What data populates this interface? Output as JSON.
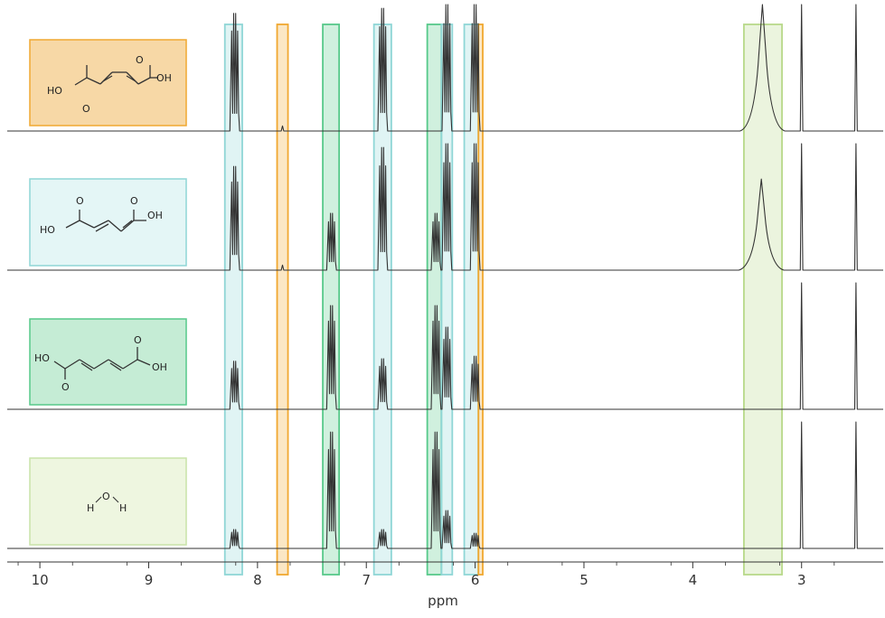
{
  "chart_data": {
    "type": "line",
    "x_axis": {
      "label": "ppm",
      "reversed": true,
      "range": [
        10.3,
        2.25
      ],
      "ticks": [
        10,
        9,
        8,
        7,
        6,
        5,
        4,
        3
      ]
    },
    "y_axis": {
      "shown": false
    },
    "grid": false,
    "legend": "none",
    "highlight_bands": [
      {
        "from": 8.3,
        "to": 8.14,
        "color": "#8fd6d6"
      },
      {
        "from": 7.82,
        "to": 7.72,
        "color": "#f0a830"
      },
      {
        "from": 7.4,
        "to": 7.25,
        "color": "#57c98a"
      },
      {
        "from": 6.93,
        "to": 6.77,
        "color": "#8fd6d6"
      },
      {
        "from": 6.44,
        "to": 6.31,
        "color": "#57c98a"
      },
      {
        "from": 6.31,
        "to": 6.21,
        "color": "#8fd6d6"
      },
      {
        "from": 6.1,
        "to": 5.97,
        "color": "#8fd6d6"
      },
      {
        "from": 5.97,
        "to": 5.93,
        "color": "#f0a830"
      },
      {
        "from": 3.53,
        "to": 3.18,
        "color": "#b8d98a"
      }
    ],
    "spectra": [
      {
        "label_box_color": "#f0a830",
        "label_box_fill": "#f7d8a6",
        "peaks": [
          {
            "ppm": 8.21,
            "height": 0.93,
            "multiplet": 4
          },
          {
            "ppm": 7.77,
            "height": 0.04,
            "multiplet": 1
          },
          {
            "ppm": 6.85,
            "height": 0.97,
            "multiplet": 4
          },
          {
            "ppm": 6.26,
            "height": 1.0,
            "multiplet": 4
          },
          {
            "ppm": 6.0,
            "height": 1.0,
            "multiplet": 4
          },
          {
            "ppm": 3.36,
            "height": 1.0,
            "multiplet": 1
          },
          {
            "ppm": 3.0,
            "height": 1.0,
            "multiplet": 1
          },
          {
            "ppm": 2.5,
            "height": 1.0,
            "multiplet": 1
          }
        ]
      },
      {
        "label_box_color": "#8fd6d6",
        "label_box_fill": "#e4f6f6",
        "peaks": [
          {
            "ppm": 8.21,
            "height": 0.82,
            "multiplet": 4
          },
          {
            "ppm": 7.77,
            "height": 0.04,
            "multiplet": 1
          },
          {
            "ppm": 7.32,
            "height": 0.45,
            "multiplet": 4
          },
          {
            "ppm": 6.85,
            "height": 0.97,
            "multiplet": 4
          },
          {
            "ppm": 6.36,
            "height": 0.45,
            "multiplet": 4
          },
          {
            "ppm": 6.26,
            "height": 1.0,
            "multiplet": 4
          },
          {
            "ppm": 6.0,
            "height": 1.0,
            "multiplet": 4
          },
          {
            "ppm": 3.37,
            "height": 0.72,
            "multiplet": 1
          },
          {
            "ppm": 3.0,
            "height": 1.0,
            "multiplet": 1
          },
          {
            "ppm": 2.5,
            "height": 1.0,
            "multiplet": 1
          }
        ]
      },
      {
        "label_box_color": "#57c98a",
        "label_box_fill": "#c5ecd5",
        "peaks": [
          {
            "ppm": 8.21,
            "height": 0.38,
            "multiplet": 4
          },
          {
            "ppm": 7.32,
            "height": 0.82,
            "multiplet": 4
          },
          {
            "ppm": 6.85,
            "height": 0.4,
            "multiplet": 4
          },
          {
            "ppm": 6.36,
            "height": 0.82,
            "multiplet": 4
          },
          {
            "ppm": 6.26,
            "height": 0.65,
            "multiplet": 4
          },
          {
            "ppm": 6.0,
            "height": 0.42,
            "multiplet": 4
          },
          {
            "ppm": 3.0,
            "height": 1.0,
            "multiplet": 1
          },
          {
            "ppm": 2.5,
            "height": 1.0,
            "multiplet": 1
          }
        ]
      },
      {
        "label_box_color": "#c9e4a8",
        "label_box_fill": "#eef6e0",
        "peaks": [
          {
            "ppm": 8.21,
            "height": 0.15,
            "multiplet": 4
          },
          {
            "ppm": 7.32,
            "height": 0.92,
            "multiplet": 4
          },
          {
            "ppm": 6.85,
            "height": 0.15,
            "multiplet": 4
          },
          {
            "ppm": 6.36,
            "height": 0.92,
            "multiplet": 4
          },
          {
            "ppm": 6.26,
            "height": 0.3,
            "multiplet": 4
          },
          {
            "ppm": 6.0,
            "height": 0.12,
            "multiplet": 4
          },
          {
            "ppm": 3.0,
            "height": 1.0,
            "multiplet": 1
          },
          {
            "ppm": 2.5,
            "height": 1.0,
            "multiplet": 1
          }
        ]
      }
    ],
    "molecule_labels": [
      {
        "left": "HO",
        "right": "OH",
        "top_o": "O",
        "bottom_o": "O"
      },
      {
        "left": "HO",
        "right": "OH",
        "top_o": "O",
        "bottom_o": "O"
      },
      {
        "left": "HO",
        "right": "OH",
        "top_o": "O",
        "bottom_o": "O"
      },
      {
        "h1": "H",
        "o": "O",
        "h2": "H"
      }
    ],
    "trace_color": "#333333"
  }
}
